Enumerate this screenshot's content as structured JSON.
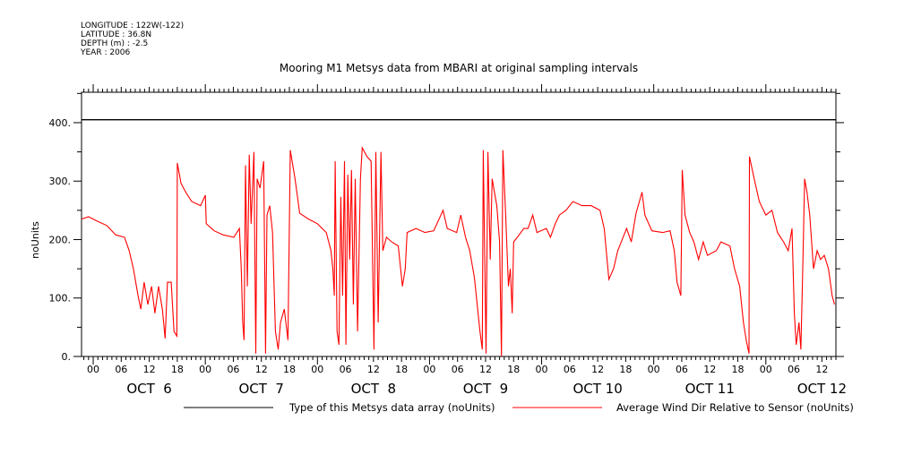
{
  "header": {
    "longitude": "LONGITUDE : 122W(-122)",
    "latitude": "LATITUDE : 36.8N",
    "depth": "DEPTH (m) : -2.5",
    "year": "YEAR : 2006"
  },
  "chart_data": {
    "type": "line",
    "title": "Mooring M1 Metsys data from MBARI at original sampling intervals",
    "ylabel": "noUnits",
    "xlabel": "",
    "x_units": "hours since OCT 6 00:00, 2006",
    "xlim": [
      -2.5,
      159
    ],
    "ylim": [
      0,
      452
    ],
    "yticks": [
      0,
      100,
      200,
      300,
      400
    ],
    "ytick_labels": [
      "0.",
      "100.",
      "200.",
      "300.",
      "400."
    ],
    "xtick_hours": [
      0,
      6,
      12,
      18,
      24,
      30,
      36,
      42,
      48,
      54,
      60,
      66,
      72,
      78,
      84,
      90,
      96,
      102,
      108,
      114,
      120,
      126,
      132,
      138,
      144,
      150,
      156
    ],
    "xtick_labels": [
      "00",
      "06",
      "12",
      "18",
      "00",
      "06",
      "12",
      "18",
      "00",
      "06",
      "12",
      "18",
      "00",
      "06",
      "12",
      "18",
      "00",
      "06",
      "12",
      "18",
      "00",
      "06",
      "12",
      "18",
      "00",
      "06",
      "12"
    ],
    "day_labels": [
      {
        "hour": 12,
        "label": "OCT  6"
      },
      {
        "hour": 36,
        "label": "OCT  7"
      },
      {
        "hour": 60,
        "label": "OCT  8"
      },
      {
        "hour": 84,
        "label": "OCT  9"
      },
      {
        "hour": 108,
        "label": "OCT 10"
      },
      {
        "hour": 132,
        "label": "OCT 11"
      },
      {
        "hour": 156,
        "label": "OCT 12"
      }
    ],
    "grid": false,
    "legend_position": "bottom",
    "series": [
      {
        "name": "Type of this Metsys data array (noUnits)",
        "color": "#000000",
        "x": [
          -2.5,
          159
        ],
        "y": [
          405,
          405
        ]
      },
      {
        "name": "Average Wind Dir Relative to Sensor (noUnits)",
        "color": "#ff0000",
        "x": [
          -2.5,
          -1,
          1,
          2.9,
          4.8,
          6.7,
          7.7,
          8.6,
          9.6,
          10.2,
          10.9,
          11.7,
          12.5,
          13.2,
          14,
          14.8,
          15.4,
          15.9,
          16.7,
          17.3,
          17.9,
          18,
          18.8,
          19.8,
          21.1,
          23,
          24,
          24.2,
          25.9,
          27.8,
          30.1,
          31.3,
          31.7,
          32,
          32.3,
          32.6,
          33,
          33.4,
          33.8,
          34.4,
          34.8,
          35.1,
          35.7,
          36.5,
          36.9,
          37.2,
          37.8,
          38.4,
          39,
          39.6,
          40.1,
          40.9,
          41.7,
          42.2,
          43.2,
          44.2,
          46.1,
          48,
          49.9,
          50.9,
          51.3,
          51.6,
          51.8,
          52.2,
          52.6,
          53,
          53.4,
          53.8,
          54.1,
          54.5,
          54.9,
          55.3,
          55.7,
          56.1,
          56.6,
          57.2,
          57.6,
          58.6,
          59.5,
          60.1,
          60.5,
          61,
          61.6,
          62,
          62.8,
          63.9,
          65.3,
          66.2,
          66.8,
          67.2,
          69.1,
          71,
          72.9,
          74.9,
          75.8,
          77.8,
          78.7,
          79.7,
          80.6,
          81.6,
          82.2,
          82.8,
          83.3,
          83.5,
          84.1,
          84.5,
          85,
          85.4,
          86.4,
          87,
          87.4,
          87.7,
          88.3,
          88.9,
          89.3,
          89.7,
          90,
          90.8,
          92.2,
          93.1,
          94.1,
          95,
          97,
          97.9,
          98.9,
          99.8,
          101.2,
          102.7,
          104.6,
          106.6,
          108.5,
          109.4,
          110.4,
          111.4,
          112.3,
          114.2,
          115.2,
          116.2,
          117.5,
          118.1,
          119.6,
          121.9,
          123.5,
          124.4,
          125,
          125.8,
          126.1,
          126.7,
          127.7,
          128.6,
          129.6,
          130.6,
          131.5,
          133.4,
          134.4,
          136.3,
          137.3,
          138.4,
          139.2,
          139.8,
          140.4,
          140.5,
          141.5,
          142.6,
          144,
          145.3,
          146.5,
          147.8,
          148.8,
          149.6,
          150.1,
          150.5,
          151.1,
          151.5,
          151.9,
          152.3,
          152.8,
          153.4,
          154.2,
          155,
          155.7,
          156.5,
          157.4,
          158.2,
          158.7
        ],
        "y": [
          235,
          239,
          231,
          224,
          208,
          204,
          181,
          150,
          104,
          81,
          127,
          89,
          120,
          74,
          120,
          81,
          31,
          127,
          127,
          43,
          35,
          331,
          296,
          281,
          265,
          258,
          276,
          227,
          215,
          208,
          204,
          219,
          150,
          58,
          28,
          327,
          120,
          345,
          227,
          350,
          5,
          304,
          288,
          334,
          5,
          242,
          258,
          212,
          43,
          12,
          58,
          81,
          28,
          353,
          304,
          245,
          235,
          227,
          212,
          181,
          150,
          104,
          334,
          43,
          20,
          273,
          104,
          334,
          20,
          311,
          166,
          319,
          89,
          304,
          43,
          304,
          357,
          342,
          334,
          12,
          350,
          58,
          350,
          181,
          204,
          196,
          189,
          120,
          150,
          212,
          219,
          212,
          215,
          250,
          219,
          212,
          242,
          204,
          181,
          135,
          89,
          43,
          12,
          353,
          5,
          350,
          166,
          304,
          258,
          196,
          0,
          353,
          242,
          120,
          150,
          74,
          196,
          204,
          219,
          219,
          242,
          212,
          219,
          204,
          227,
          242,
          250,
          265,
          258,
          258,
          250,
          219,
          132,
          150,
          181,
          219,
          196,
          245,
          281,
          242,
          215,
          212,
          215,
          181,
          127,
          104,
          319,
          242,
          212,
          196,
          166,
          196,
          173,
          181,
          196,
          189,
          150,
          120,
          58,
          28,
          5,
          342,
          304,
          265,
          242,
          250,
          212,
          196,
          181,
          219,
          74,
          20,
          58,
          12,
          150,
          304,
          281,
          242,
          150,
          181,
          166,
          173,
          150,
          104,
          89
        ]
      }
    ]
  }
}
